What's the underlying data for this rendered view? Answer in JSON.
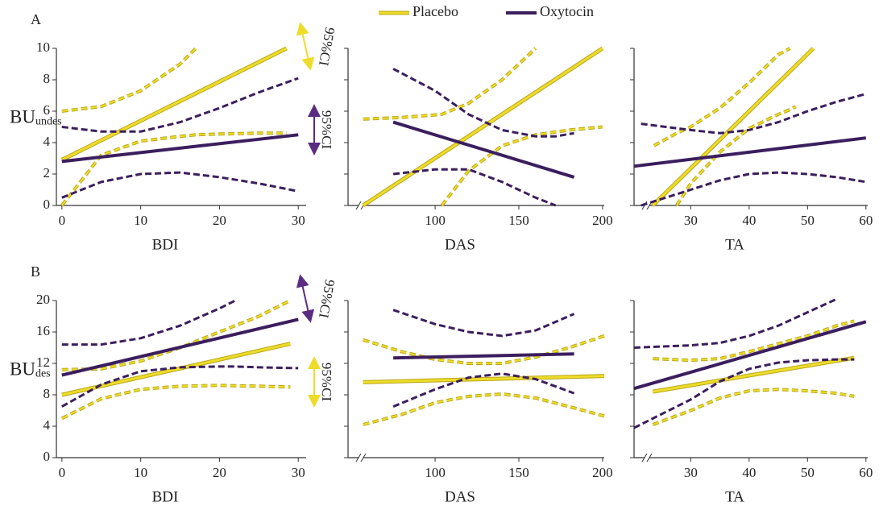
{
  "legend": [
    {
      "name": "Placebo",
      "color": "#eedc2a"
    },
    {
      "name": "Oxytocin",
      "color": "#3b1e5e"
    }
  ],
  "chart_data": [
    {
      "type": "line",
      "panel_label": "A",
      "ylabel": "BU",
      "ylabel_sub": "undes",
      "xlabel": "BDI",
      "xlim": [
        -0.7,
        31
      ],
      "ylim": [
        0,
        10
      ],
      "xticks": [
        0,
        10,
        20,
        30
      ],
      "yticks": [
        0,
        2,
        4,
        6,
        8,
        10
      ],
      "ytick_labels": true,
      "axis_break": false,
      "ci_annotations": [
        {
          "text": "95%CI",
          "color": "#eedc2a"
        },
        {
          "text": "95%CI",
          "color": "#5a2d82"
        }
      ],
      "series": [
        {
          "color": "#eedc2a",
          "x": [
            0,
            28.5
          ],
          "values": [
            2.9,
            10
          ],
          "ci_x": [
            0,
            5,
            10,
            15,
            17,
            20,
            25,
            28.5
          ],
          "ci_upper": [
            6,
            6.3,
            7.3,
            9.0,
            10,
            null,
            null,
            null
          ],
          "ci_lower": [
            0,
            3.2,
            4.1,
            4.4,
            4.5,
            4.55,
            4.6,
            4.6
          ]
        },
        {
          "color": "#3b1e5e",
          "x": [
            0,
            30
          ],
          "values": [
            2.8,
            4.5
          ],
          "ci_x": [
            0,
            5,
            10,
            15,
            20,
            25,
            30
          ],
          "ci_upper": [
            5,
            4.7,
            4.7,
            5.3,
            6.2,
            7.2,
            8.1
          ],
          "ci_lower": [
            0.5,
            1.5,
            2.0,
            2.1,
            1.8,
            1.4,
            0.9
          ]
        }
      ]
    },
    {
      "type": "line",
      "xlabel": "DAS",
      "xlim": [
        48,
        201
      ],
      "ylim": [
        0,
        10
      ],
      "xticks": [
        100,
        150,
        200
      ],
      "yticks": [
        0,
        2,
        4,
        6,
        8,
        10
      ],
      "ytick_labels": false,
      "axis_break": true,
      "series": [
        {
          "color": "#eedc2a",
          "x": [
            57,
            200
          ],
          "values": [
            0,
            10
          ],
          "ci_x": [
            57,
            80,
            104,
            120,
            140,
            160,
            180,
            200
          ],
          "ci_upper": [
            5.5,
            5.6,
            5.8,
            6.5,
            8.0,
            10,
            null,
            null
          ],
          "ci_lower": [
            null,
            null,
            0,
            2.2,
            3.8,
            4.5,
            4.8,
            5.0
          ]
        },
        {
          "color": "#3b1e5e",
          "x": [
            75,
            183
          ],
          "values": [
            5.3,
            1.8
          ],
          "ci_x": [
            75,
            100,
            120,
            140,
            160,
            172,
            183
          ],
          "ci_upper": [
            8.7,
            7.3,
            5.8,
            4.8,
            4.4,
            4.4,
            4.6
          ],
          "ci_lower": [
            2.0,
            2.3,
            2.3,
            1.5,
            0.5,
            0,
            null
          ]
        }
      ]
    },
    {
      "type": "line",
      "xlabel": "TA",
      "xlim": [
        20.3,
        60.3
      ],
      "ylim": [
        0,
        10
      ],
      "xticks": [
        30,
        40,
        50,
        60
      ],
      "yticks": [
        0,
        2,
        4,
        6,
        8,
        10
      ],
      "ytick_labels": false,
      "axis_break": true,
      "series": [
        {
          "color": "#eedc2a",
          "x": [
            23.5,
            51
          ],
          "values": [
            0,
            10
          ],
          "ci_x": [
            23.7,
            27.6,
            30,
            35,
            40,
            45,
            47,
            48
          ],
          "ci_upper": [
            3.8,
            4.6,
            5.0,
            6.2,
            7.8,
            9.6,
            10,
            null
          ],
          "ci_lower": [
            null,
            0,
            1.4,
            3.4,
            4.9,
            5.8,
            6.1,
            6.3
          ]
        },
        {
          "color": "#3b1e5e",
          "x": [
            20.3,
            60
          ],
          "values": [
            2.5,
            4.3
          ],
          "ci_x": [
            21.5,
            30,
            35,
            40,
            45,
            50,
            55,
            60
          ],
          "ci_upper": [
            5.2,
            4.8,
            4.6,
            4.8,
            5.3,
            6.0,
            6.6,
            7.1
          ],
          "ci_lower": [
            0,
            1.0,
            1.6,
            2.0,
            2.1,
            2.0,
            1.8,
            1.5
          ]
        }
      ]
    },
    {
      "type": "line",
      "panel_label": "B",
      "ylabel": "BU",
      "ylabel_sub": "des",
      "xlabel": "BDI",
      "xlim": [
        -0.7,
        31
      ],
      "ylim": [
        0,
        20
      ],
      "xticks": [
        0,
        10,
        20,
        30
      ],
      "yticks": [
        0,
        4,
        8,
        12,
        16,
        20
      ],
      "ytick_labels": true,
      "axis_break": false,
      "ci_annotations": [
        {
          "text": "95%CI",
          "color": "#5a2d82"
        },
        {
          "text": "95%CI",
          "color": "#eedc2a"
        }
      ],
      "series": [
        {
          "color": "#eedc2a",
          "x": [
            0,
            29
          ],
          "values": [
            8,
            14.5
          ],
          "ci_x": [
            0,
            5,
            10,
            15,
            20,
            25,
            29
          ],
          "ci_upper": [
            11.2,
            11.3,
            12.3,
            14,
            16,
            18,
            20
          ],
          "ci_lower": [
            5,
            7.5,
            8.7,
            9.1,
            9.2,
            9.1,
            9.0
          ]
        },
        {
          "color": "#3b1e5e",
          "x": [
            0,
            30
          ],
          "values": [
            10.5,
            17.6
          ],
          "ci_x": [
            0,
            5,
            10,
            15,
            20,
            22,
            25,
            30
          ],
          "ci_upper": [
            14.4,
            14.4,
            15.2,
            16.8,
            19,
            20,
            null,
            null
          ],
          "ci_lower": [
            6.5,
            9.3,
            11,
            11.5,
            11.6,
            11.6,
            11.5,
            11.4
          ]
        }
      ]
    },
    {
      "type": "line",
      "xlabel": "DAS",
      "xlim": [
        48,
        201
      ],
      "ylim": [
        0,
        20
      ],
      "xticks": [
        100,
        150,
        200
      ],
      "yticks": [
        0,
        4,
        8,
        12,
        16,
        20
      ],
      "ytick_labels": false,
      "axis_break": true,
      "series": [
        {
          "color": "#eedc2a",
          "x": [
            57,
            201
          ],
          "values": [
            9.6,
            10.4
          ],
          "ci_x": [
            57,
            80,
            100,
            120,
            140,
            160,
            180,
            201
          ],
          "ci_upper": [
            15,
            13.5,
            12.5,
            12,
            12,
            12.8,
            14,
            15.5
          ],
          "ci_lower": [
            4.2,
            5.5,
            7,
            7.8,
            8.1,
            7.6,
            6.5,
            5.3
          ]
        },
        {
          "color": "#3b1e5e",
          "x": [
            75,
            183
          ],
          "values": [
            12.7,
            13.2
          ],
          "ci_x": [
            75,
            100,
            120,
            140,
            160,
            183
          ],
          "ci_upper": [
            18.8,
            17,
            16,
            15.5,
            16.2,
            18.3
          ],
          "ci_lower": [
            6.5,
            8.7,
            10.2,
            10.7,
            10,
            8.2
          ]
        }
      ]
    },
    {
      "type": "line",
      "xlabel": "TA",
      "xlim": [
        20.3,
        60.3
      ],
      "ylim": [
        0,
        20
      ],
      "xticks": [
        30,
        40,
        50,
        60
      ],
      "yticks": [
        0,
        4,
        8,
        12,
        16,
        20
      ],
      "ytick_labels": false,
      "axis_break": true,
      "series": [
        {
          "color": "#eedc2a",
          "x": [
            23.5,
            58
          ],
          "values": [
            8.4,
            12.7
          ],
          "ci_x": [
            23.5,
            30,
            35,
            40,
            45,
            50,
            55,
            58
          ],
          "ci_upper": [
            12.6,
            12.4,
            12.6,
            13.5,
            14.5,
            15.5,
            16.8,
            17.4
          ],
          "ci_lower": [
            4.2,
            6,
            7.6,
            8.5,
            8.7,
            8.5,
            8.2,
            7.8
          ]
        },
        {
          "color": "#3b1e5e",
          "x": [
            20.3,
            60
          ],
          "values": [
            8.8,
            17.3
          ],
          "ci_x": [
            20.3,
            30,
            35,
            40,
            45,
            50,
            55,
            58
          ],
          "ci_upper": [
            14,
            14.3,
            14.6,
            15.5,
            16.8,
            18.5,
            20.2,
            null
          ],
          "ci_lower": [
            3.8,
            7.4,
            9.7,
            11.3,
            12.1,
            12.4,
            12.5,
            12.5
          ]
        }
      ]
    }
  ]
}
